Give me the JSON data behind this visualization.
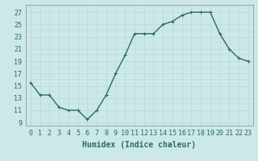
{
  "x": [
    0,
    1,
    2,
    3,
    4,
    5,
    6,
    7,
    8,
    9,
    10,
    11,
    12,
    13,
    14,
    15,
    16,
    17,
    18,
    19,
    20,
    21,
    22,
    23
  ],
  "y": [
    15.5,
    13.5,
    13.5,
    11.5,
    11.0,
    11.0,
    9.5,
    11.0,
    13.5,
    17.0,
    20.0,
    23.5,
    23.5,
    23.5,
    25.0,
    25.5,
    26.5,
    27.0,
    27.0,
    27.0,
    23.5,
    21.0,
    19.5,
    19.0
  ],
  "line_color": "#2d6b5e",
  "marker": "+",
  "marker_size": 3,
  "bg_color": "#cce9e7",
  "grid_color": "#b8d8d6",
  "xlabel": "Humidex (Indice chaleur)",
  "xlabel_fontsize": 7,
  "xtick_labels": [
    "0",
    "1",
    "2",
    "3",
    "4",
    "5",
    "6",
    "7",
    "8",
    "9",
    "10",
    "11",
    "12",
    "13",
    "14",
    "15",
    "16",
    "17",
    "18",
    "19",
    "20",
    "21",
    "22",
    "23"
  ],
  "ytick_labels": [
    "9",
    "11",
    "13",
    "15",
    "17",
    "19",
    "21",
    "23",
    "25",
    "27"
  ],
  "ytick_values": [
    9,
    11,
    13,
    15,
    17,
    19,
    21,
    23,
    25,
    27
  ],
  "ylim": [
    8.5,
    28.2
  ],
  "xlim": [
    -0.5,
    23.5
  ],
  "tick_fontsize": 6,
  "line_width": 1.0
}
